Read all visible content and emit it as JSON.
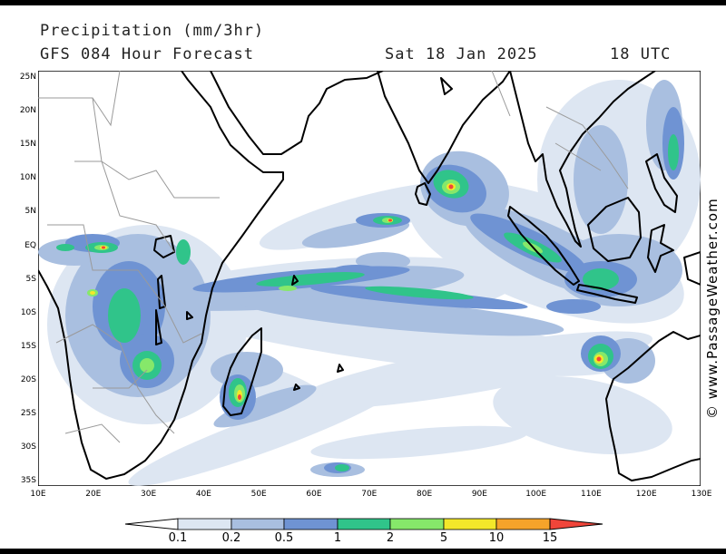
{
  "header": {
    "title": "Precipitation (mm/3hr)",
    "model": "GFS 084 Hour Forecast",
    "date": "Sat 18 Jan 2025",
    "time": "18 UTC"
  },
  "credit": "© www.PassageWeather.com",
  "axes": {
    "lat_labels": [
      "25N",
      "20N",
      "15N",
      "10N",
      "5N",
      "EQ",
      "5S",
      "10S",
      "15S",
      "20S",
      "25S",
      "30S",
      "35S"
    ],
    "lon_labels": [
      "10E",
      "20E",
      "30E",
      "40E",
      "50E",
      "60E",
      "70E",
      "80E",
      "90E",
      "100E",
      "110E",
      "120E",
      "130E"
    ]
  },
  "colorbar": {
    "labels": [
      "0.1",
      "0.2",
      "0.5",
      "1",
      "2",
      "5",
      "10",
      "15"
    ],
    "colors": [
      "#ffffff",
      "#dde6f2",
      "#a9bfe0",
      "#6f93d3",
      "#30c48a",
      "#86e86a",
      "#f3e82a",
      "#f5a32a",
      "#f0453a"
    ]
  },
  "palette": {
    "land": "#ffffff",
    "ocean": "#ffffff",
    "coast": "#000000",
    "border": "#9a9a9a"
  }
}
